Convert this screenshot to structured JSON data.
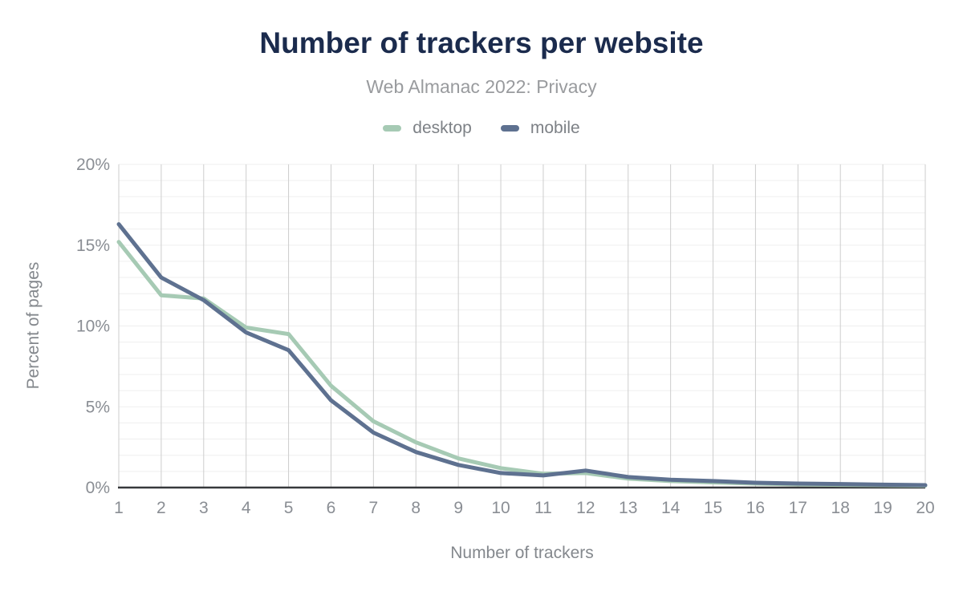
{
  "chart_data": {
    "type": "line",
    "title": "Number of trackers per website",
    "subtitle": "Web Almanac 2022: Privacy",
    "xlabel": "Number of trackers",
    "ylabel": "Percent of pages",
    "x": [
      1,
      2,
      3,
      4,
      5,
      6,
      7,
      8,
      9,
      10,
      11,
      12,
      13,
      14,
      15,
      16,
      17,
      18,
      19,
      20
    ],
    "series": [
      {
        "name": "desktop",
        "color": "#a6cab4",
        "values": [
          15.2,
          11.9,
          11.7,
          9.9,
          9.5,
          6.3,
          4.1,
          2.8,
          1.8,
          1.2,
          0.85,
          0.9,
          0.55,
          0.4,
          0.32,
          0.25,
          0.2,
          0.17,
          0.15,
          0.12
        ]
      },
      {
        "name": "mobile",
        "color": "#5e7190",
        "values": [
          16.3,
          13.0,
          11.6,
          9.6,
          8.5,
          5.4,
          3.4,
          2.2,
          1.4,
          0.9,
          0.75,
          1.05,
          0.65,
          0.48,
          0.4,
          0.3,
          0.25,
          0.22,
          0.18,
          0.15
        ]
      }
    ],
    "ylim": [
      0,
      20
    ],
    "y_tick_labels": [
      "0%",
      "5%",
      "10%",
      "15%",
      "20%"
    ],
    "y_tick_step": 5,
    "y_minor_step": 1,
    "grid": "on",
    "legend_position": "top"
  },
  "colors": {
    "title": "#1b2b4d",
    "subtitle": "#999b9e",
    "axis_labels": "#84888d",
    "tick_labels": "#8a8e94",
    "grid_vertical": "#cdcdcd",
    "grid_horizontal": "#efefef",
    "axis_line": "#37393c",
    "background": "#ffffff"
  }
}
